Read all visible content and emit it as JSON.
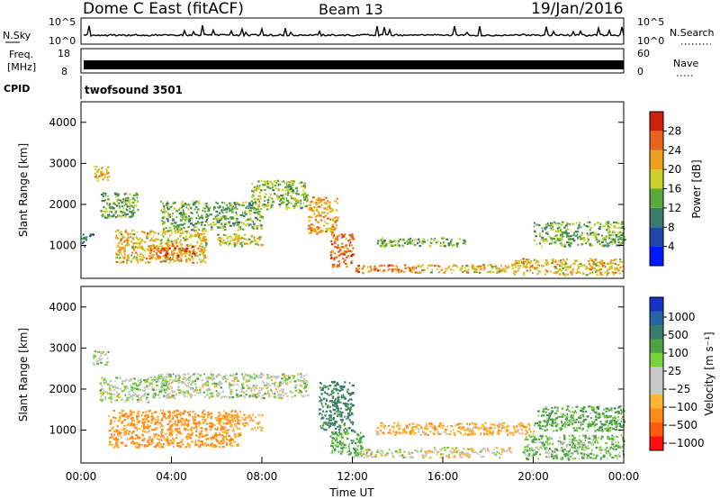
{
  "header": {
    "radar": "Dome C East (fitACF)",
    "beam": "Beam 13",
    "date": "19/Jan/2016"
  },
  "summary_panels": {
    "nsky": {
      "label": "N.Sky",
      "ticks": [
        "10^5",
        "10^0"
      ]
    },
    "nsearch": {
      "label": "N.Search",
      "ticks": [
        "10^5",
        "10^0"
      ]
    },
    "freq": {
      "label_line1": "Freq.",
      "label_line2": "[MHz]",
      "ticks": [
        "18",
        "8"
      ]
    },
    "nave": {
      "label": "Nave",
      "ticks": [
        "60",
        "0"
      ]
    },
    "cpid": {
      "label": "CPID",
      "value": "twofsound 3501"
    }
  },
  "colors": {
    "power_scale": [
      "#0018ff",
      "#1e46a8",
      "#3c7a6e",
      "#5aa83c",
      "#c8d22a",
      "#f0a020",
      "#e8641a",
      "#d02010"
    ],
    "velocity_scale": [
      "#ff1010",
      "#ff5a10",
      "#ff8c1a",
      "#ffb432",
      "#c8c8c8",
      "#c8c8c8",
      "#78d23c",
      "#50a046",
      "#3c7a6e",
      "#2864a0",
      "#1432c8"
    ],
    "summary_line": "#000000"
  },
  "chart_data": [
    {
      "type": "heatmap",
      "title": "Power",
      "ylabel": "Slant Range [km]",
      "xlabel": "",
      "ylim": [
        200,
        4500
      ],
      "yticks": [
        "1000",
        "2000",
        "3000",
        "4000"
      ],
      "colorbar": {
        "label": "Power [dB]",
        "range": [
          0,
          32
        ],
        "ticks": [
          "4",
          "8",
          "12",
          "16",
          "20",
          "24",
          "28"
        ]
      },
      "regions": [
        {
          "t0": 0.0,
          "t1": 0.5,
          "r0": 1000,
          "r1": 1300,
          "value": 8
        },
        {
          "t0": 0.5,
          "t1": 1.2,
          "r0": 2600,
          "r1": 2950,
          "value": 22
        },
        {
          "t0": 0.8,
          "t1": 2.5,
          "r0": 1700,
          "r1": 2300,
          "value": 14
        },
        {
          "t0": 1.5,
          "t1": 5.5,
          "r0": 600,
          "r1": 1400,
          "value": 20
        },
        {
          "t0": 3.0,
          "t1": 5.0,
          "r0": 700,
          "r1": 1000,
          "value": 26
        },
        {
          "t0": 3.5,
          "t1": 8.0,
          "r0": 1400,
          "r1": 2100,
          "value": 14
        },
        {
          "t0": 6.0,
          "t1": 8.0,
          "r0": 1000,
          "r1": 1300,
          "value": 18
        },
        {
          "t0": 7.5,
          "t1": 10.0,
          "r0": 1900,
          "r1": 2600,
          "value": 16
        },
        {
          "t0": 10.0,
          "t1": 11.3,
          "r0": 1300,
          "r1": 2200,
          "value": 22
        },
        {
          "t0": 11.0,
          "t1": 12.0,
          "r0": 500,
          "r1": 1300,
          "value": 26
        },
        {
          "t0": 12.0,
          "t1": 15.0,
          "r0": 350,
          "r1": 550,
          "value": 24
        },
        {
          "t0": 13.0,
          "t1": 17.0,
          "r0": 1000,
          "r1": 1200,
          "value": 14
        },
        {
          "t0": 15.0,
          "t1": 19.0,
          "r0": 350,
          "r1": 550,
          "value": 20
        },
        {
          "t0": 19.0,
          "t1": 24.0,
          "r0": 300,
          "r1": 700,
          "value": 20
        },
        {
          "t0": 20.0,
          "t1": 24.0,
          "r0": 1000,
          "r1": 1600,
          "value": 14
        }
      ]
    },
    {
      "type": "heatmap",
      "title": "Velocity",
      "ylabel": "Slant Range [km]",
      "xlabel": "Time UT",
      "ylim": [
        200,
        4500
      ],
      "yticks": [
        "1000",
        "2000",
        "3000",
        "4000"
      ],
      "xticks": [
        "00:00",
        "04:00",
        "08:00",
        "12:00",
        "16:00",
        "20:00",
        "00:00"
      ],
      "xlim_hours": [
        0,
        24
      ],
      "colorbar": {
        "label": "Velocity [m s⁻¹]",
        "ticks": [
          "1000",
          "500",
          "100",
          "25",
          "−25",
          "−100",
          "−500",
          "−1000"
        ]
      },
      "regions": [
        {
          "t0": 0.5,
          "t1": 1.2,
          "r0": 2600,
          "r1": 2950,
          "value": 0
        },
        {
          "t0": 0.8,
          "t1": 3.0,
          "r0": 1700,
          "r1": 2300,
          "value": 0
        },
        {
          "t0": 1.2,
          "t1": 7.0,
          "r0": 600,
          "r1": 1500,
          "value": -300
        },
        {
          "t0": 3.0,
          "t1": 10.0,
          "r0": 1800,
          "r1": 2400,
          "value": 0
        },
        {
          "t0": 6.0,
          "t1": 8.0,
          "r0": 1000,
          "r1": 1400,
          "value": -200
        },
        {
          "t0": 10.5,
          "t1": 12.0,
          "r0": 1000,
          "r1": 2200,
          "value": 300
        },
        {
          "t0": 11.0,
          "t1": 12.5,
          "r0": 400,
          "r1": 1000,
          "value": 150
        },
        {
          "t0": 12.0,
          "t1": 15.0,
          "r0": 350,
          "r1": 550,
          "value": 0
        },
        {
          "t0": 13.0,
          "t1": 20.0,
          "r0": 900,
          "r1": 1200,
          "value": -200
        },
        {
          "t0": 15.0,
          "t1": 19.0,
          "r0": 350,
          "r1": 600,
          "value": -80
        },
        {
          "t0": 19.5,
          "t1": 24.0,
          "r0": 300,
          "r1": 900,
          "value": 80
        },
        {
          "t0": 20.0,
          "t1": 24.0,
          "r0": 1000,
          "r1": 1600,
          "value": 150
        }
      ]
    }
  ]
}
